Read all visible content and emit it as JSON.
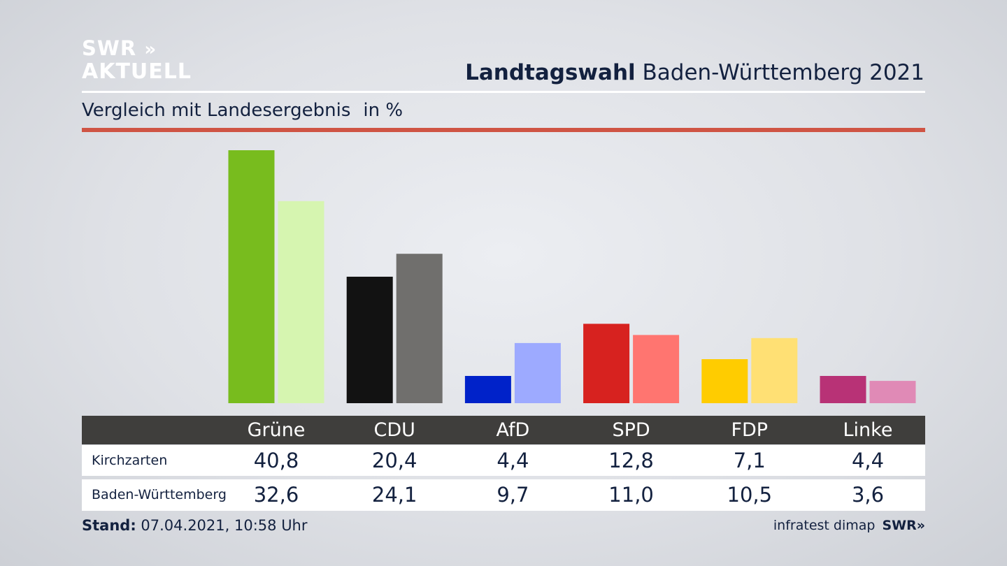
{
  "logo": {
    "line1": "SWR",
    "line1_chevrons": "»",
    "line2": "AKTUELL"
  },
  "header": {
    "title_bold": "Landtagswahl",
    "title_rest": "Baden-Württemberg 2021"
  },
  "subtitle": {
    "text": "Vergleich mit Landesergebnis",
    "unit": "in %"
  },
  "footer": {
    "stand_label": "Stand:",
    "stand_value": "07.04.2021, 10:58 Uhr",
    "source": "infratest dimap",
    "source_logo": "SWR»"
  },
  "chart_data": {
    "type": "bar",
    "categories": [
      "Grüne",
      "CDU",
      "AfD",
      "SPD",
      "FDP",
      "Linke"
    ],
    "series": [
      {
        "name": "Kirchzarten",
        "values": [
          40.8,
          20.4,
          4.4,
          12.8,
          7.1,
          4.4
        ],
        "labels": [
          "40,8",
          "20,4",
          "4,4",
          "12,8",
          "7,1",
          "4,4"
        ],
        "colors": [
          "#78bc1e",
          "#121212",
          "#0022c9",
          "#d7221f",
          "#ffcc00",
          "#b83276"
        ]
      },
      {
        "name": "Baden-Württemberg",
        "values": [
          32.6,
          24.1,
          9.7,
          11.0,
          10.5,
          3.6
        ],
        "labels": [
          "32,6",
          "24,1",
          "9,7",
          "11,0",
          "10,5",
          "3,6"
        ],
        "colors": [
          "#d6f5b0",
          "#706f6d",
          "#9daaff",
          "#ff7570",
          "#ffe074",
          "#e08ab6"
        ]
      }
    ],
    "ylim": [
      0,
      40.8
    ],
    "grid": false,
    "legend": "table-below"
  }
}
